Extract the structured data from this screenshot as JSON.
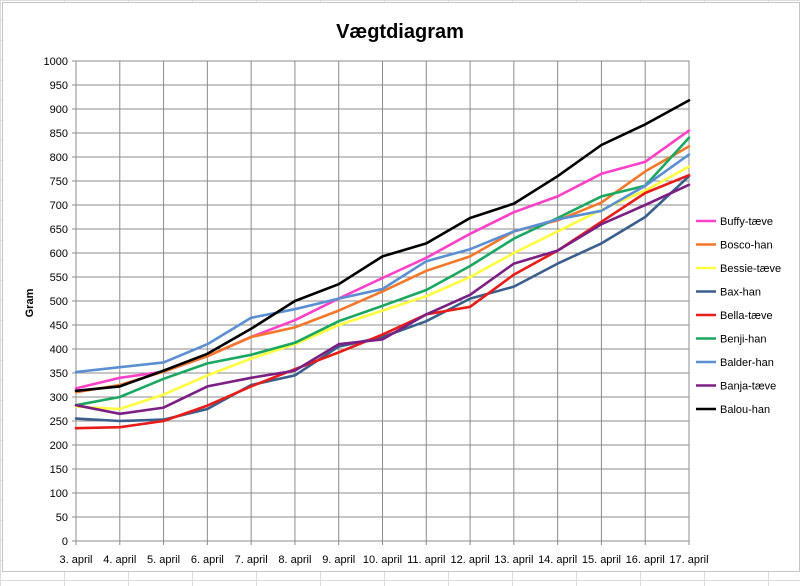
{
  "chart_data": {
    "type": "line",
    "title": "Vægtdiagram",
    "xlabel": "",
    "ylabel": "Gram",
    "ylim": [
      0,
      1000
    ],
    "ytick_step": 50,
    "grid": true,
    "legend_position": "right",
    "categories": [
      "3. april",
      "4. april",
      "5. april",
      "6. april",
      "7. april",
      "8. april",
      "9. april",
      "10. april",
      "11. april",
      "12. april",
      "13. april",
      "14. april",
      "15. april",
      "16. april",
      "17. april"
    ],
    "series": [
      {
        "name": "Buffy-tæve",
        "color": "#ff40c8",
        "values": [
          318,
          340,
          353,
          385,
          425,
          460,
          505,
          548,
          590,
          640,
          685,
          718,
          765,
          790,
          855
        ]
      },
      {
        "name": "Bosco-han",
        "color": "#f4782a",
        "values": [
          310,
          325,
          353,
          385,
          425,
          445,
          480,
          520,
          563,
          593,
          645,
          668,
          705,
          770,
          822
        ]
      },
      {
        "name": "Bessie-tæve",
        "color": "#ffff40",
        "values": [
          280,
          275,
          305,
          345,
          380,
          410,
          450,
          480,
          510,
          550,
          600,
          645,
          690,
          730,
          780
        ]
      },
      {
        "name": "Bax-han",
        "color": "#3a5f8c",
        "values": [
          255,
          250,
          253,
          275,
          325,
          345,
          405,
          425,
          458,
          505,
          530,
          578,
          620,
          675,
          760
        ]
      },
      {
        "name": "Bella-tæve",
        "color": "#e81c18",
        "values": [
          235,
          237,
          250,
          282,
          322,
          358,
          393,
          430,
          472,
          488,
          555,
          605,
          665,
          725,
          762
        ]
      },
      {
        "name": "Benji-han",
        "color": "#1aa860",
        "values": [
          283,
          300,
          338,
          370,
          388,
          413,
          458,
          490,
          523,
          573,
          630,
          673,
          718,
          740,
          840
        ]
      },
      {
        "name": "Balder-han",
        "color": "#5b8fd2",
        "values": [
          352,
          362,
          372,
          410,
          465,
          483,
          505,
          525,
          583,
          608,
          645,
          670,
          688,
          740,
          805
        ]
      },
      {
        "name": "Banja-tæve",
        "color": "#7c1f84",
        "values": [
          283,
          265,
          278,
          322,
          340,
          355,
          410,
          420,
          472,
          513,
          578,
          605,
          660,
          700,
          742
        ]
      },
      {
        "name": "Balou-han",
        "color": "#000000",
        "values": [
          313,
          322,
          355,
          390,
          442,
          500,
          535,
          593,
          620,
          673,
          703,
          760,
          825,
          868,
          918
        ]
      }
    ]
  }
}
